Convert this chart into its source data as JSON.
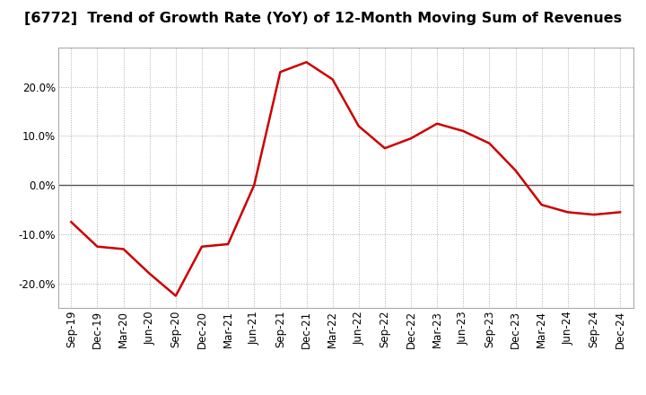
{
  "title": "[6772]  Trend of Growth Rate (YoY) of 12-Month Moving Sum of Revenues",
  "line_color": "#cc0000",
  "background_color": "#ffffff",
  "grid_color": "#aaaaaa",
  "zero_line_color": "#555555",
  "x_labels": [
    "Sep-19",
    "Dec-19",
    "Mar-20",
    "Jun-20",
    "Sep-20",
    "Dec-20",
    "Mar-21",
    "Jun-21",
    "Sep-21",
    "Dec-21",
    "Mar-22",
    "Jun-22",
    "Sep-22",
    "Dec-22",
    "Mar-23",
    "Jun-23",
    "Sep-23",
    "Dec-23",
    "Mar-24",
    "Jun-24",
    "Sep-24",
    "Dec-24"
  ],
  "y_values": [
    -7.5,
    -12.5,
    -13.0,
    -18.0,
    -22.5,
    -12.5,
    -12.0,
    0.0,
    23.0,
    25.0,
    21.5,
    12.0,
    7.5,
    9.5,
    12.5,
    11.0,
    8.5,
    3.0,
    -4.0,
    -5.5,
    -6.0,
    -5.5
  ],
  "ylim": [
    -25,
    28
  ],
  "yticks": [
    -20,
    -10,
    0,
    10,
    20
  ],
  "title_fontsize": 11.5,
  "tick_fontsize": 8.5,
  "line_width": 1.8
}
